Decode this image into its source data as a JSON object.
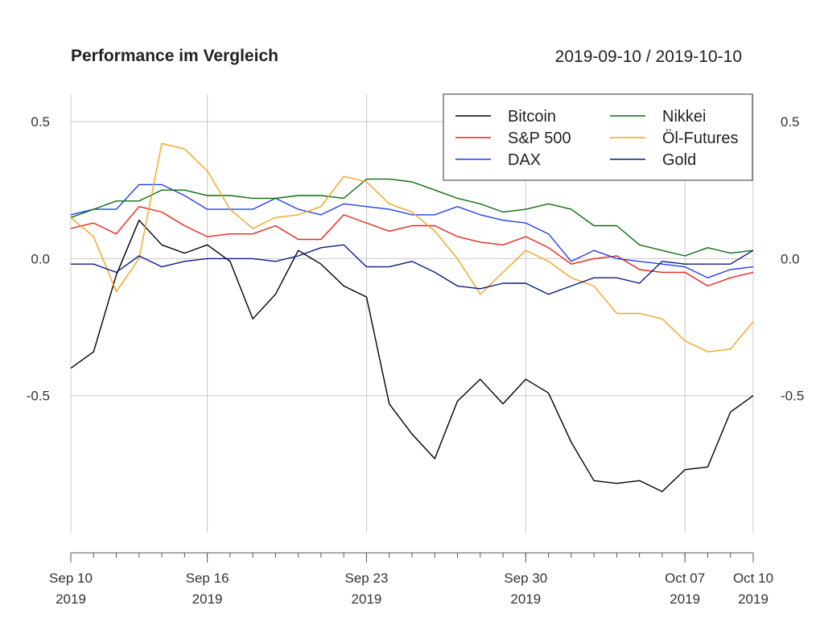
{
  "chart_data": {
    "type": "line",
    "title": "Performance im Vergleich",
    "date_range": "2019-09-10 / 2019-10-10",
    "ylim": [
      -1.0,
      0.6
    ],
    "y_ticks": [
      {
        "value": 0.5,
        "label": "0.5"
      },
      {
        "value": 0.0,
        "label": "0.0"
      },
      {
        "value": -0.5,
        "label": "-0.5"
      }
    ],
    "x_ticks": [
      {
        "date": "2019-09-10",
        "label_top": "Sep 10",
        "label_bottom": "2019"
      },
      {
        "date": "2019-09-16",
        "label_top": "Sep 16",
        "label_bottom": "2019"
      },
      {
        "date": "2019-09-23",
        "label_top": "Sep 23",
        "label_bottom": "2019"
      },
      {
        "date": "2019-09-30",
        "label_top": "Sep 30",
        "label_bottom": "2019"
      },
      {
        "date": "2019-10-07",
        "label_top": "Oct 07",
        "label_bottom": "2019"
      },
      {
        "date": "2019-10-10",
        "label_top": "Oct 10",
        "label_bottom": "2019"
      }
    ],
    "grid": true,
    "legend_position": "top-right",
    "legend_columns": 2,
    "x": [
      "2019-09-10",
      "2019-09-11",
      "2019-09-12",
      "2019-09-13",
      "2019-09-14",
      "2019-09-15",
      "2019-09-16",
      "2019-09-17",
      "2019-09-18",
      "2019-09-19",
      "2019-09-20",
      "2019-09-21",
      "2019-09-22",
      "2019-09-23",
      "2019-09-24",
      "2019-09-25",
      "2019-09-26",
      "2019-09-27",
      "2019-09-28",
      "2019-09-29",
      "2019-09-30",
      "2019-10-01",
      "2019-10-02",
      "2019-10-03",
      "2019-10-04",
      "2019-10-05",
      "2019-10-06",
      "2019-10-07",
      "2019-10-08",
      "2019-10-09",
      "2019-10-10"
    ],
    "series": [
      {
        "name": "Bitcoin",
        "color": "#000000",
        "values": [
          -0.4,
          -0.34,
          -0.06,
          0.14,
          0.05,
          0.02,
          0.05,
          -0.01,
          -0.22,
          -0.13,
          0.03,
          -0.02,
          -0.1,
          -0.14,
          -0.53,
          -0.64,
          -0.73,
          -0.52,
          -0.44,
          -0.53,
          -0.44,
          -0.49,
          -0.67,
          -0.81,
          -0.82,
          -0.81,
          -0.85,
          -0.77,
          -0.76,
          -0.56,
          -0.5
        ]
      },
      {
        "name": "S&P 500",
        "color": "#e8251b",
        "values": [
          0.11,
          0.13,
          0.09,
          0.19,
          0.17,
          0.12,
          0.08,
          0.09,
          0.09,
          0.12,
          0.07,
          0.07,
          0.16,
          0.13,
          0.1,
          0.12,
          0.12,
          0.08,
          0.06,
          0.05,
          0.08,
          0.04,
          -0.02,
          0.0,
          0.01,
          -0.04,
          -0.05,
          -0.05,
          -0.1,
          -0.07,
          -0.05
        ]
      },
      {
        "name": "DAX",
        "color": "#1f3ff0",
        "values": [
          0.16,
          0.18,
          0.18,
          0.27,
          0.27,
          0.23,
          0.18,
          0.18,
          0.18,
          0.22,
          0.18,
          0.16,
          0.2,
          0.19,
          0.18,
          0.16,
          0.16,
          0.19,
          0.16,
          0.14,
          0.13,
          0.09,
          -0.01,
          0.03,
          0.0,
          -0.01,
          -0.02,
          -0.03,
          -0.07,
          -0.04,
          -0.03
        ]
      },
      {
        "name": "Nikkei",
        "color": "#0d6b0d",
        "values": [
          0.15,
          0.18,
          0.21,
          0.21,
          0.25,
          0.25,
          0.23,
          0.23,
          0.22,
          0.22,
          0.23,
          0.23,
          0.22,
          0.29,
          0.29,
          0.28,
          0.25,
          0.22,
          0.2,
          0.17,
          0.18,
          0.2,
          0.18,
          0.12,
          0.12,
          0.05,
          0.03,
          0.01,
          0.04,
          0.02,
          0.03
        ]
      },
      {
        "name": "Öl-Futures",
        "color": "#f5a31b",
        "values": [
          0.15,
          0.08,
          -0.12,
          0.0,
          0.42,
          0.4,
          0.32,
          0.18,
          0.11,
          0.15,
          0.16,
          0.19,
          0.3,
          0.28,
          0.2,
          0.17,
          0.1,
          0.0,
          -0.13,
          -0.05,
          0.03,
          -0.01,
          -0.07,
          -0.1,
          -0.2,
          -0.2,
          -0.22,
          -0.3,
          -0.34,
          -0.33,
          -0.23
        ]
      },
      {
        "name": "Gold",
        "color": "#0a1c80",
        "values": [
          -0.02,
          -0.02,
          -0.05,
          0.01,
          -0.03,
          -0.01,
          0.0,
          0.0,
          0.0,
          -0.01,
          0.01,
          0.04,
          0.05,
          -0.03,
          -0.03,
          -0.01,
          -0.05,
          -0.1,
          -0.11,
          -0.09,
          -0.09,
          -0.13,
          -0.1,
          -0.07,
          -0.07,
          -0.09,
          -0.01,
          -0.02,
          -0.02,
          -0.02,
          0.03
        ]
      }
    ]
  }
}
